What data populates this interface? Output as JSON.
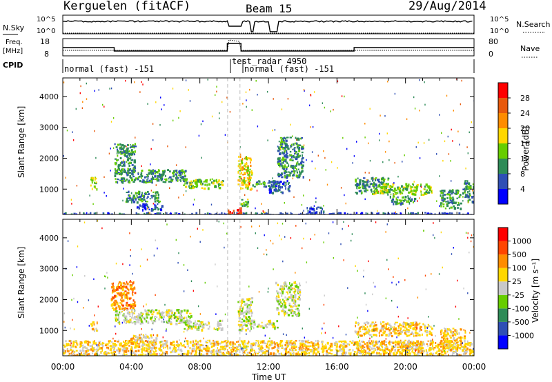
{
  "header": {
    "station": "Kerguelen (fitACF)",
    "beam": "Beam 15",
    "date": "29/Aug/2014"
  },
  "strip_panels": {
    "nsky": {
      "label": "N.Sky",
      "ticks": [
        "10^5",
        "10^0"
      ],
      "right_label": "N.Search",
      "right_ticks": [
        "10^5",
        "10^0"
      ]
    },
    "freq": {
      "label_line1": "Freq.",
      "label_line2": "[MHz]",
      "ticks": [
        "18",
        "8"
      ],
      "right_label": "Nave",
      "right_ticks": [
        "80",
        "0"
      ]
    },
    "cpid": {
      "label": "CPID",
      "segments": [
        "normal (fast) -151",
        "test_radar 4950",
        "normal (fast) -151"
      ]
    }
  },
  "chart_data": [
    {
      "type": "heatmap",
      "name": "power",
      "ylabel": "Slant Range [km]",
      "ylim": [
        180,
        4600
      ],
      "y_ticks": [
        1000,
        2000,
        3000,
        4000
      ],
      "x_range_hours": [
        0,
        24
      ],
      "colorbar": {
        "label": "Power [dB]",
        "ticks": [
          "4",
          "8",
          "12",
          "16",
          "20",
          "24",
          "28"
        ],
        "colors": [
          "#0000ff",
          "#2f4fb5",
          "#2e8b57",
          "#66cd00",
          "#ffd700",
          "#ff8c00",
          "#e8590c",
          "#ff0000"
        ]
      },
      "regions": [
        {
          "x0": 0.0,
          "x1": 24.0,
          "y0": 180,
          "y1": 260,
          "level": 1,
          "note": "near-range ground band"
        },
        {
          "x0": 1.6,
          "x1": 2.0,
          "y0": 1000,
          "y1": 1400,
          "level": 3
        },
        {
          "x0": 3.0,
          "x1": 4.2,
          "y0": 1500,
          "y1": 2500,
          "level": 2
        },
        {
          "x0": 3.0,
          "x1": 7.2,
          "y0": 1250,
          "y1": 1650,
          "level": 2
        },
        {
          "x0": 7.0,
          "x1": 9.3,
          "y0": 1050,
          "y1": 1350,
          "level": 3
        },
        {
          "x0": 3.6,
          "x1": 5.6,
          "y0": 600,
          "y1": 950,
          "level": 2
        },
        {
          "x0": 4.3,
          "x1": 5.8,
          "y0": 350,
          "y1": 550,
          "level": 1
        },
        {
          "x0": 10.2,
          "x1": 11.0,
          "y0": 1000,
          "y1": 2100,
          "level": 4
        },
        {
          "x0": 10.3,
          "x1": 10.8,
          "y0": 450,
          "y1": 700,
          "level": 3
        },
        {
          "x0": 11.0,
          "x1": 12.3,
          "y0": 1100,
          "y1": 1300,
          "level": 2
        },
        {
          "x0": 12.5,
          "x1": 14.0,
          "y0": 1400,
          "y1": 2700,
          "level": 2
        },
        {
          "x0": 12.0,
          "x1": 13.2,
          "y0": 900,
          "y1": 1300,
          "level": 1
        },
        {
          "x0": 14.2,
          "x1": 15.2,
          "y0": 250,
          "y1": 450,
          "level": 1
        },
        {
          "x0": 17.0,
          "x1": 19.0,
          "y0": 900,
          "y1": 1400,
          "level": 2
        },
        {
          "x0": 18.0,
          "x1": 21.5,
          "y0": 850,
          "y1": 1200,
          "level": 3
        },
        {
          "x0": 19.0,
          "x1": 20.5,
          "y0": 550,
          "y1": 800,
          "level": 2
        },
        {
          "x0": 22.0,
          "x1": 23.2,
          "y0": 400,
          "y1": 1000,
          "level": 2
        },
        {
          "x0": 23.3,
          "x1": 24.0,
          "y0": 600,
          "y1": 1300,
          "level": 2
        },
        {
          "x0": 9.6,
          "x1": 10.4,
          "y0": 180,
          "y1": 420,
          "level": 7
        }
      ]
    },
    {
      "type": "heatmap",
      "name": "velocity",
      "ylabel": "Slant Range [km]",
      "xlabel": "Time UT",
      "ylim": [
        180,
        4600
      ],
      "y_ticks": [
        1000,
        2000,
        3000,
        4000
      ],
      "x_ticks": [
        "00:00",
        "04:00",
        "08:00",
        "12:00",
        "16:00",
        "20:00",
        "00:00"
      ],
      "x_tick_hours": [
        0,
        4,
        8,
        12,
        16,
        20,
        24
      ],
      "colorbar": {
        "label": "Velocity [m s⁻¹]",
        "ticks": [
          "1000",
          "500",
          "100",
          "25",
          "-25",
          "-100",
          "-500",
          "-1000"
        ],
        "colors": [
          "#0000ff",
          "#2f4fb5",
          "#2e8b57",
          "#66cd00",
          "#c8c8c8",
          "#ffd700",
          "#ff8c00",
          "#ff4500",
          "#ff0000"
        ]
      },
      "regions": [
        {
          "x0": 2.8,
          "x1": 4.2,
          "y0": 1700,
          "y1": 2600,
          "level": 6
        },
        {
          "x0": 3.0,
          "x1": 7.5,
          "y0": 1250,
          "y1": 1700,
          "level": 4
        },
        {
          "x0": 7.0,
          "x1": 9.3,
          "y0": 1050,
          "y1": 1350,
          "level": 4
        },
        {
          "x0": 10.2,
          "x1": 11.0,
          "y0": 1000,
          "y1": 2100,
          "level": 4
        },
        {
          "x0": 11.0,
          "x1": 12.5,
          "y0": 1100,
          "y1": 1350,
          "level": 4
        },
        {
          "x0": 12.4,
          "x1": 13.8,
          "y0": 1500,
          "y1": 2600,
          "level": 4
        },
        {
          "x0": 10.3,
          "x1": 10.7,
          "y0": 450,
          "y1": 700,
          "level": 3
        },
        {
          "x0": 3.8,
          "x1": 5.5,
          "y0": 650,
          "y1": 900,
          "level": 5
        },
        {
          "x0": 17.0,
          "x1": 21.5,
          "y0": 850,
          "y1": 1300,
          "level": 5
        },
        {
          "x0": 19.5,
          "x1": 21.0,
          "y0": 400,
          "y1": 700,
          "level": 5
        },
        {
          "x0": 22.0,
          "x1": 23.5,
          "y0": 400,
          "y1": 1100,
          "level": 5
        },
        {
          "x0": 1.6,
          "x1": 2.0,
          "y0": 1000,
          "y1": 1300,
          "level": 5
        },
        {
          "x0": 0.0,
          "x1": 24.0,
          "y0": 200,
          "y1": 700,
          "level": 5
        }
      ]
    }
  ]
}
